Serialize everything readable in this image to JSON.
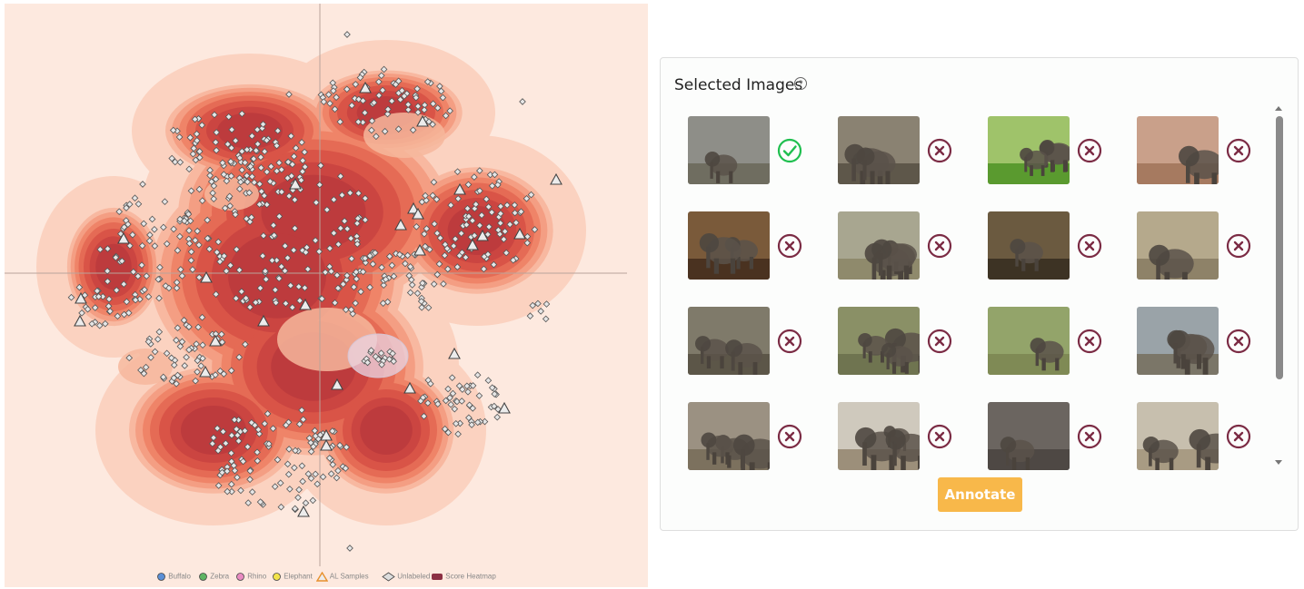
{
  "legend": [
    {
      "label": "Buffalo",
      "marker": "circle",
      "color": "#5b8fd6"
    },
    {
      "label": "Zebra",
      "marker": "circle",
      "color": "#5fb463"
    },
    {
      "label": "Rhino",
      "marker": "circle",
      "color": "#e98bc1"
    },
    {
      "label": "Elephant",
      "marker": "circle",
      "color": "#f3e34a"
    },
    {
      "label": "AL Samples",
      "marker": "triangle",
      "color": "#e8902d"
    },
    {
      "label": "Unlabeled",
      "marker": "diamond",
      "color": "#9a9a9a"
    },
    {
      "label": "Score Heatmap",
      "marker": "rect",
      "color": "#8c2f43"
    }
  ],
  "panel": {
    "title": "Selected Images",
    "help_icon": "question-circle-icon",
    "annotate_label": "Annotate"
  },
  "images": [
    {
      "status": "accepted",
      "scene": "elephant-group",
      "bg": "#8e8e88",
      "ground": "#6f6d60"
    },
    {
      "status": "rejected",
      "scene": "elephant-close",
      "bg": "#8a8272",
      "ground": "#5e574a"
    },
    {
      "status": "rejected",
      "scene": "elephant-grass",
      "bg": "#9fc36a",
      "ground": "#5a9a2f"
    },
    {
      "status": "rejected",
      "scene": "elephant-herd",
      "bg": "#c9a08a",
      "ground": "#a67a60"
    },
    {
      "status": "rejected",
      "scene": "elephant-people",
      "bg": "#7a5a3a",
      "ground": "#4a3220"
    },
    {
      "status": "rejected",
      "scene": "elephant-walk",
      "bg": "#a8a690",
      "ground": "#8f8a6c"
    },
    {
      "status": "rejected",
      "scene": "elephant-handler",
      "bg": "#6b5a40",
      "ground": "#3d3324"
    },
    {
      "status": "rejected",
      "scene": "elephant-calf",
      "bg": "#b5a98c",
      "ground": "#8e8268"
    },
    {
      "status": "rejected",
      "scene": "elephant-water",
      "bg": "#7f7a6a",
      "ground": "#5c5648"
    },
    {
      "status": "rejected",
      "scene": "elephant-legs",
      "bg": "#8a9066",
      "ground": "#6f7450"
    },
    {
      "status": "rejected",
      "scene": "elephant-family",
      "bg": "#93a46a",
      "ground": "#7f8a55"
    },
    {
      "status": "rejected",
      "scene": "elephant-mud",
      "bg": "#9aa3a8",
      "ground": "#7b7668"
    },
    {
      "status": "rejected",
      "scene": "elephant-tusker",
      "bg": "#9b9182",
      "ground": "#7c715e"
    },
    {
      "status": "rejected",
      "scene": "elephant-calves",
      "bg": "#cfc9bd",
      "ground": "#9c8f7a"
    },
    {
      "status": "rejected",
      "scene": "elephant-back",
      "bg": "#6b6560",
      "ground": "#4e4844"
    },
    {
      "status": "rejected",
      "scene": "elephant-baby",
      "bg": "#c7bfae",
      "ground": "#a89b83"
    }
  ]
}
